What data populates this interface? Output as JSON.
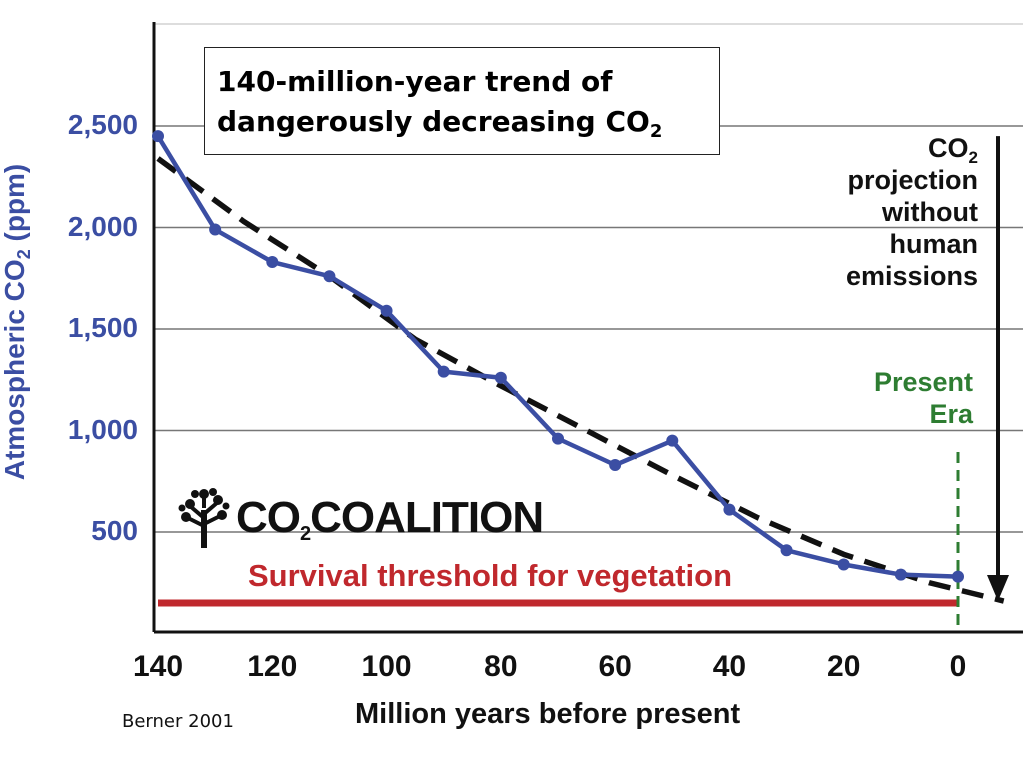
{
  "chart_data": {
    "type": "line",
    "title_line1": "140-million-year trend of",
    "title_line2_prefix": "dangerously decreasing CO",
    "title_line2_sub": "2",
    "ylabel_prefix": "Atmospheric CO",
    "ylabel_sub": "2",
    "ylabel_suffix": " (ppm)",
    "xlabel": "Million years before present",
    "xlim": [
      140,
      -10
    ],
    "ylim": [
      0,
      2500
    ],
    "y_ticks": [
      500,
      1000,
      1500,
      2000,
      2500
    ],
    "y_tick_labels": [
      "500",
      "1,000",
      "1,500",
      "2,000",
      "2,500"
    ],
    "x_ticks": [
      140,
      120,
      100,
      80,
      60,
      40,
      20,
      0
    ],
    "x_tick_labels": [
      "140",
      "120",
      "100",
      "80",
      "60",
      "40",
      "20",
      "0"
    ],
    "grid": "horizontal",
    "series": [
      {
        "color": "#3b4ea3",
        "style": "solid-with-markers",
        "x": [
          140,
          130,
          120,
          110,
          100,
          90,
          80,
          70,
          60,
          50,
          40,
          30,
          20,
          10,
          0
        ],
        "y": [
          2450,
          1990,
          1830,
          1760,
          1590,
          1290,
          1260,
          960,
          830,
          950,
          610,
          410,
          340,
          290,
          280
        ]
      },
      {
        "color": "#111111",
        "style": "dashed-trend",
        "x": [
          140,
          125,
          110,
          95,
          80,
          65,
          50,
          35,
          20,
          5,
          -8
        ],
        "y": [
          2340,
          2030,
          1760,
          1450,
          1220,
          1000,
          780,
          570,
          390,
          250,
          160
        ]
      }
    ],
    "survival_threshold": {
      "label": "Survival threshold for vegetation",
      "y": 150,
      "x_from": 140,
      "x_to": 0,
      "color": "#c0282d"
    },
    "present_era": {
      "label_line1": "Present",
      "label_line2": "Era",
      "x": 0,
      "color": "#2e7d32"
    },
    "projection_arrow": {
      "label_line1_prefix": "CO",
      "label_line1_sub": "2",
      "label_line2": "projection",
      "label_line3": "without",
      "label_line4": "human",
      "label_line5": "emissions",
      "x": -7,
      "y_from": 2450,
      "y_to": 180
    },
    "source": "Berner 2001",
    "logo_text_prefix": "CO",
    "logo_text_sub": "2",
    "logo_text_suffix": "COALITION"
  }
}
